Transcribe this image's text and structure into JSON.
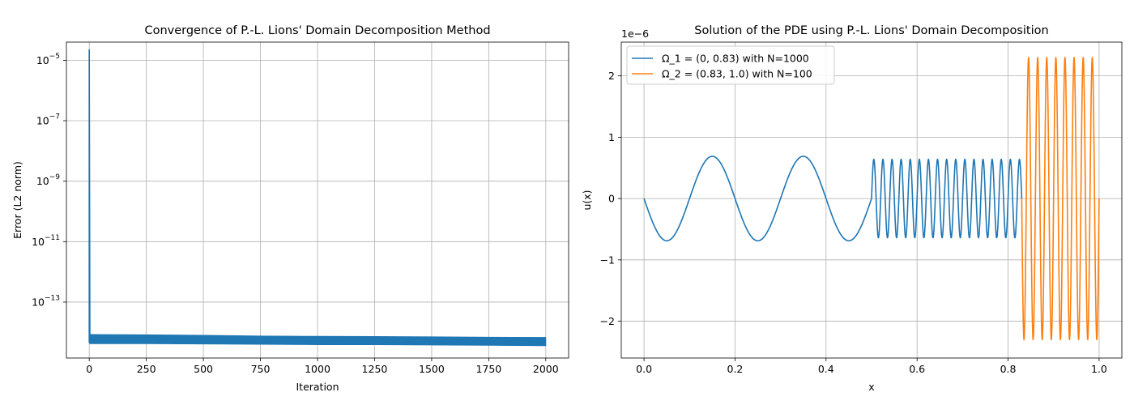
{
  "chart_data": [
    {
      "type": "line",
      "title": "Convergence of P.-L. Lions' Domain Decomposition Method",
      "xlabel": "Iteration",
      "ylabel": "Error (L2 norm)",
      "xlim": [
        -100,
        2100
      ],
      "ylim_log10": [
        -14.85,
        -4.4
      ],
      "yscale": "log",
      "grid": true,
      "xticks": [
        0,
        250,
        500,
        750,
        1000,
        1250,
        1500,
        1750,
        2000
      ],
      "yticks": [
        {
          "base": "10",
          "exp": "−5",
          "pow": -5
        },
        {
          "base": "10",
          "exp": "−7",
          "pow": -7
        },
        {
          "base": "10",
          "exp": "−9",
          "pow": -9
        },
        {
          "base": "10",
          "exp": "−11",
          "pow": -11
        },
        {
          "base": "10",
          "exp": "−13",
          "pow": -13
        }
      ],
      "series": [
        {
          "color": "#1f77b4",
          "spike": {
            "x": [
              0,
              1
            ],
            "y": [
              2.3e-05,
              4.5e-15
            ]
          },
          "band": {
            "x": [
              2,
              250,
              500,
              750,
              1000,
              1250,
              1500,
              1750,
              2000
            ],
            "upper": [
              8.5e-15,
              8.3e-15,
              8e-15,
              7.6e-15,
              7.4e-15,
              7.3e-15,
              7.1e-15,
              6.9e-15,
              6.8e-15
            ],
            "lower": [
              4.2e-15,
              4.2e-15,
              4.1e-15,
              4e-15,
              3.9e-15,
              3.9e-15,
              3.8e-15,
              3.7e-15,
              3.6e-15
            ]
          }
        }
      ]
    },
    {
      "type": "line",
      "title": "Solution of the PDE using P.-L. Lions' Domain Decomposition",
      "xlabel": "x",
      "ylabel": "u(x)",
      "offset_text": "1e−6",
      "xlim": [
        -0.05,
        1.05
      ],
      "ylim": [
        -2.6,
        2.55
      ],
      "grid": true,
      "legend_position": "upper left",
      "xticks": [
        0.0,
        0.2,
        0.4,
        0.6,
        0.8,
        1.0
      ],
      "xtick_labels": [
        "0.0",
        "0.2",
        "0.4",
        "0.6",
        "0.8",
        "1.0"
      ],
      "yticks": [
        -2,
        -1,
        0,
        1,
        2
      ],
      "ytick_labels": [
        "−2",
        "−1",
        "0",
        "1",
        "2"
      ],
      "series": [
        {
          "name": "Ω_1 = (0, 0.83) with N=1000",
          "color": "#1f77b4",
          "x_range": [
            0,
            0.83
          ],
          "segments": [
            {
              "x_start": 0.0,
              "x_end": 0.5,
              "amplitude": -0.69,
              "cycles": 2.5
            },
            {
              "x_start": 0.5,
              "x_end": 0.83,
              "amplitude": 0.64,
              "cycles": 16.5
            }
          ]
        },
        {
          "name": "Ω_2 = (0.83, 1.0) with N=100",
          "color": "#ff7f0e",
          "x_range": [
            0.83,
            1.0
          ],
          "segments": [
            {
              "x_start": 0.83,
              "x_end": 1.0,
              "amplitude": -2.3,
              "cycles": 8.5
            }
          ]
        }
      ]
    }
  ]
}
